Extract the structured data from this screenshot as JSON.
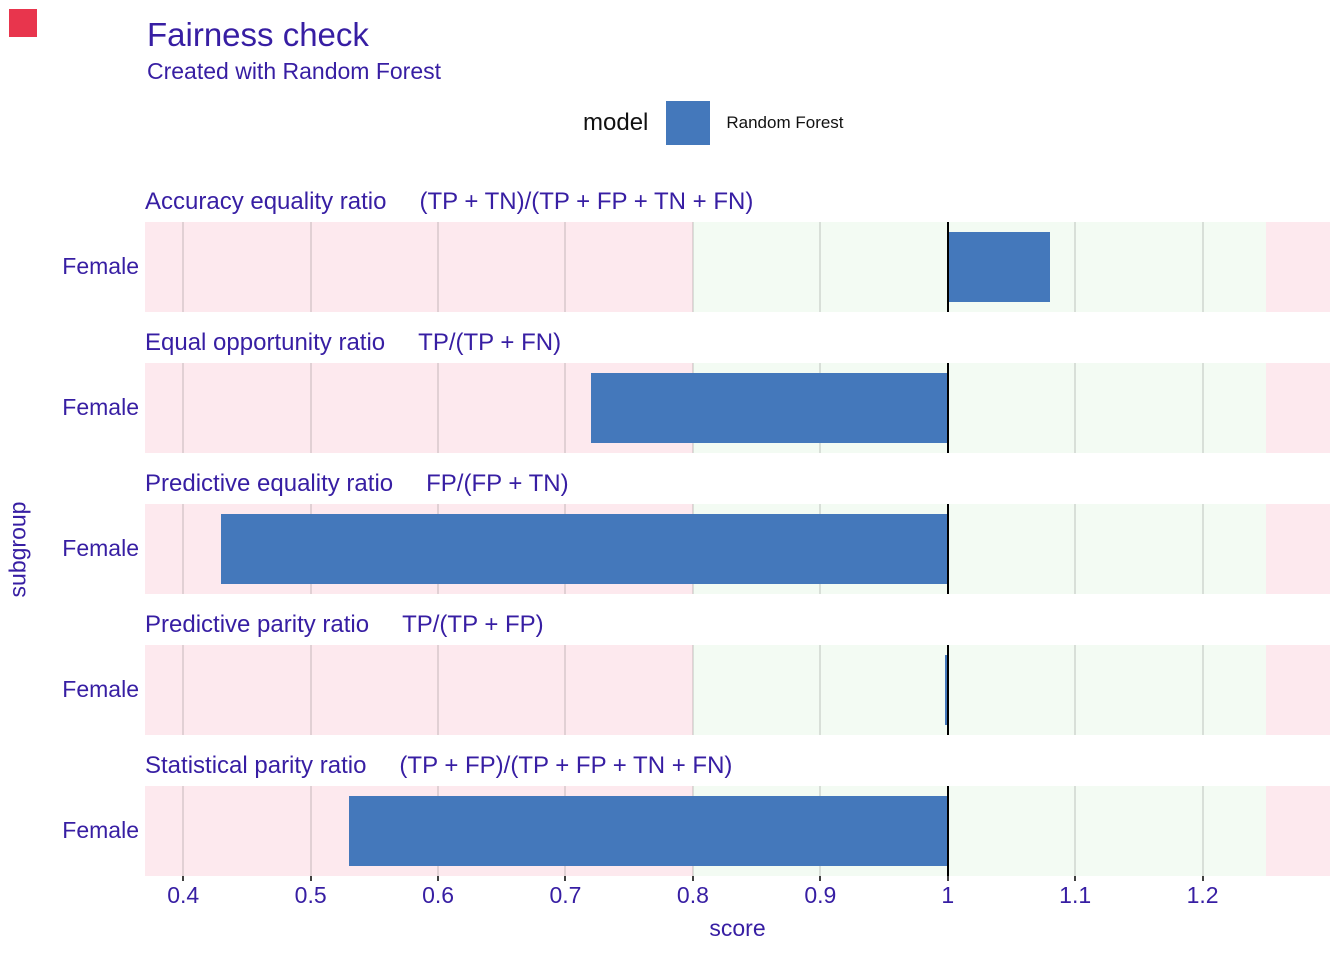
{
  "corner_marker_color": "#e8354d",
  "header": {
    "title": "Fairness check",
    "subtitle": "Created with Random Forest"
  },
  "legend": {
    "title": "model",
    "entries": [
      {
        "label": "Random Forest",
        "color": "#4478bb"
      }
    ]
  },
  "colors": {
    "text": "#371ea3",
    "bar": "#4478bb",
    "fail_band": "#fde9ee",
    "ok_band": "#f3fbf3",
    "reference_line": "#000000"
  },
  "chart_data": {
    "type": "bar",
    "orientation": "horizontal",
    "title": "Fairness check",
    "subtitle": "Created with Random Forest",
    "xlabel": "score",
    "ylabel": "subgroup",
    "legend_title": "model",
    "series_name": "Random Forest",
    "xlim": [
      0.37,
      1.3
    ],
    "xticks": [
      0.4,
      0.5,
      0.6,
      0.7,
      0.8,
      0.9,
      1,
      1.1,
      1.2
    ],
    "xtick_labels": [
      "0.4",
      "0.5",
      "0.6",
      "0.7",
      "0.8",
      "0.9",
      "1",
      "1.1",
      "1.2"
    ],
    "reference_line": 1.0,
    "acceptable_range": [
      0.8,
      1.25
    ],
    "grid": true,
    "facets": [
      {
        "metric": "Accuracy equality ratio",
        "formula": "(TP + TN)/(TP + FP + TN + FN)",
        "subgroup": "Female",
        "value": 1.08
      },
      {
        "metric": "Equal opportunity ratio",
        "formula": "TP/(TP + FN)",
        "subgroup": "Female",
        "value": 0.72
      },
      {
        "metric": "Predictive equality ratio",
        "formula": "FP/(FP + TN)",
        "subgroup": "Female",
        "value": 0.43
      },
      {
        "metric": "Predictive parity ratio",
        "formula": "TP/(TP + FP)",
        "subgroup": "Female",
        "value": 0.998
      },
      {
        "metric": "Statistical parity ratio",
        "formula": "(TP + FP)/(TP + FP + TN + FN)",
        "subgroup": "Female",
        "value": 0.53
      }
    ]
  }
}
